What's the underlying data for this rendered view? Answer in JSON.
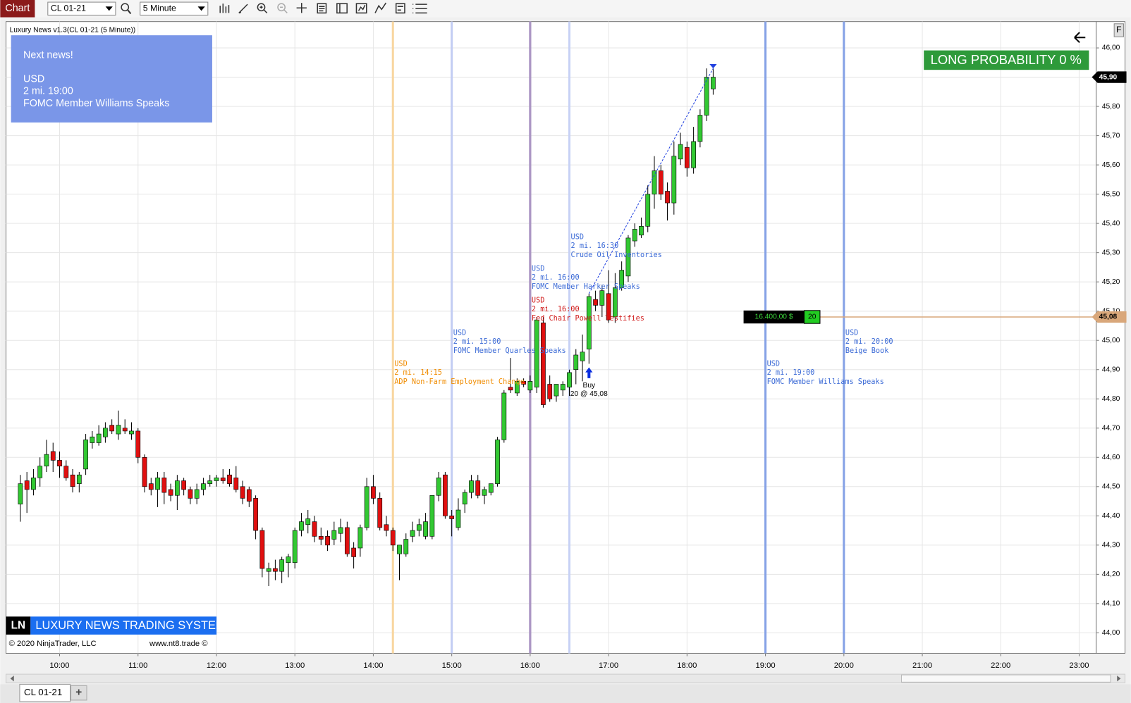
{
  "toolbar": {
    "button": "Chart",
    "instrument": "CL 01-21",
    "interval": "5 Minute"
  },
  "chart_data": {
    "type": "candlestick",
    "title": "Luxury News v1.3(CL 01-21 (5 Minute))",
    "x": [
      "9:30",
      "9:35",
      "9:40",
      "9:45",
      "9:50",
      "9:55",
      "10:00",
      "10:05",
      "10:10",
      "10:15",
      "10:20",
      "10:25",
      "10:30",
      "10:35",
      "10:40",
      "10:45",
      "10:50",
      "10:55",
      "11:00",
      "11:05",
      "11:10",
      "11:15",
      "11:20",
      "11:25",
      "11:30",
      "11:35",
      "11:40",
      "11:45",
      "11:50",
      "11:55",
      "12:00",
      "12:05",
      "12:10",
      "12:15",
      "12:20",
      "12:25",
      "12:30",
      "12:35",
      "12:40",
      "12:45",
      "12:50",
      "12:55",
      "13:00",
      "13:05",
      "13:10",
      "13:15",
      "13:20",
      "13:25",
      "13:30",
      "13:35",
      "13:40",
      "13:45",
      "13:50",
      "13:55",
      "14:00",
      "14:05",
      "14:10",
      "14:15",
      "14:20",
      "14:25",
      "14:30",
      "14:35",
      "14:40",
      "14:45",
      "14:50",
      "14:55",
      "15:00",
      "15:05",
      "15:10",
      "15:15",
      "15:20",
      "15:25",
      "15:30",
      "15:35",
      "15:40",
      "15:45",
      "15:50",
      "15:55",
      "16:00",
      "16:05",
      "16:10",
      "16:15",
      "16:20",
      "16:25",
      "16:30",
      "16:35",
      "16:40",
      "16:45",
      "16:50",
      "16:55",
      "17:00",
      "17:05",
      "17:10",
      "17:15",
      "17:20",
      "17:25",
      "17:30",
      "17:35",
      "17:40",
      "17:45",
      "17:50",
      "17:55",
      "18:00",
      "18:05",
      "18:10",
      "18:15",
      "18:20"
    ],
    "open": [
      44.44,
      44.52,
      44.49,
      44.53,
      44.57,
      44.62,
      44.59,
      44.57,
      44.54,
      44.51,
      44.56,
      44.65,
      44.65,
      44.67,
      44.71,
      44.68,
      44.7,
      44.68,
      44.69,
      44.6,
      44.51,
      44.49,
      44.53,
      44.49,
      44.47,
      44.52,
      44.49,
      44.46,
      44.49,
      44.51,
      44.52,
      44.53,
      44.54,
      44.53,
      44.5,
      44.49,
      44.46,
      44.35,
      44.21,
      44.22,
      44.21,
      44.24,
      44.24,
      44.35,
      44.37,
      44.38,
      44.33,
      44.33,
      44.32,
      44.34,
      44.36,
      44.29,
      44.29,
      44.36,
      44.5,
      44.46,
      44.37,
      44.35,
      44.27,
      44.27,
      44.33,
      44.35,
      44.33,
      44.33,
      44.47,
      44.54,
      44.4,
      44.36,
      44.44,
      44.48,
      44.52,
      44.47,
      44.48,
      44.51,
      44.66,
      44.84,
      44.82,
      44.86,
      44.83,
      44.84,
      45.06,
      44.85,
      44.81,
      44.83,
      44.84,
      44.9,
      44.93,
      44.97,
      45.14,
      45.12,
      45.16,
      45.08,
      45.18,
      45.22,
      45.34,
      45.36,
      45.39,
      45.5,
      45.58,
      45.51,
      45.47,
      45.62,
      45.66,
      45.59,
      45.68,
      45.77,
      45.86
    ],
    "high": [
      44.54,
      44.55,
      44.56,
      44.6,
      44.66,
      44.65,
      44.62,
      44.59,
      44.56,
      44.55,
      44.68,
      44.69,
      44.71,
      44.72,
      44.73,
      44.76,
      44.73,
      44.72,
      44.7,
      44.61,
      44.53,
      44.55,
      44.55,
      44.51,
      44.54,
      44.53,
      44.5,
      44.51,
      44.53,
      44.54,
      44.54,
      44.56,
      44.56,
      44.57,
      44.52,
      44.5,
      44.47,
      44.36,
      44.24,
      44.25,
      44.26,
      44.27,
      44.36,
      44.41,
      44.42,
      44.4,
      44.36,
      44.35,
      44.38,
      44.39,
      44.38,
      44.31,
      44.37,
      44.53,
      44.54,
      44.48,
      44.4,
      44.36,
      44.3,
      44.34,
      44.38,
      44.39,
      44.41,
      44.47,
      44.55,
      44.55,
      44.42,
      44.46,
      44.49,
      44.54,
      44.54,
      44.5,
      44.51,
      44.67,
      44.83,
      44.94,
      44.87,
      44.87,
      44.88,
      45.08,
      45.08,
      44.88,
      44.85,
      44.86,
      44.9,
      44.97,
      45.02,
      45.16,
      45.17,
      45.19,
      45.24,
      45.23,
      45.27,
      45.36,
      45.4,
      45.42,
      45.53,
      45.63,
      45.6,
      45.54,
      45.68,
      45.71,
      45.68,
      45.73,
      45.79,
      45.93,
      45.93
    ],
    "low": [
      44.38,
      44.41,
      44.47,
      44.5,
      44.55,
      44.55,
      44.53,
      44.52,
      44.48,
      44.48,
      44.54,
      44.63,
      44.64,
      44.65,
      44.68,
      44.66,
      44.68,
      44.66,
      44.58,
      44.48,
      44.47,
      44.43,
      44.44,
      44.45,
      44.42,
      44.47,
      44.44,
      44.44,
      44.47,
      44.5,
      44.5,
      44.51,
      44.5,
      44.48,
      44.44,
      44.43,
      44.32,
      44.19,
      44.16,
      44.18,
      44.17,
      44.19,
      44.22,
      44.33,
      44.34,
      44.31,
      44.3,
      44.28,
      44.3,
      44.31,
      44.26,
      44.22,
      44.26,
      44.35,
      44.44,
      44.35,
      44.33,
      44.28,
      44.18,
      44.26,
      44.31,
      44.33,
      44.32,
      44.32,
      44.45,
      44.39,
      44.33,
      44.35,
      44.41,
      44.46,
      44.46,
      44.44,
      44.47,
      44.5,
      44.65,
      44.82,
      44.81,
      44.84,
      44.82,
      44.82,
      44.77,
      44.79,
      44.79,
      44.81,
      44.81,
      44.85,
      44.86,
      44.92,
      45.1,
      45.08,
      45.06,
      45.06,
      45.17,
      45.2,
      45.32,
      45.35,
      45.37,
      45.45,
      45.48,
      45.41,
      45.43,
      45.6,
      45.56,
      45.57,
      45.66,
      45.75,
      45.84
    ],
    "close": [
      44.51,
      44.49,
      44.53,
      44.57,
      44.61,
      44.59,
      44.57,
      44.53,
      44.5,
      44.54,
      44.66,
      44.67,
      44.68,
      44.7,
      44.69,
      44.71,
      44.69,
      44.69,
      44.6,
      44.5,
      44.49,
      44.53,
      44.48,
      44.47,
      44.52,
      44.49,
      44.46,
      44.49,
      44.51,
      44.52,
      44.53,
      44.52,
      44.51,
      44.49,
      44.46,
      44.45,
      44.35,
      44.22,
      44.22,
      44.21,
      44.25,
      44.26,
      44.35,
      44.38,
      44.39,
      44.33,
      44.32,
      44.3,
      44.35,
      44.36,
      44.27,
      44.26,
      44.36,
      44.5,
      44.46,
      44.36,
      44.35,
      44.3,
      44.3,
      44.32,
      44.35,
      44.37,
      44.38,
      44.47,
      44.53,
      44.4,
      44.39,
      44.42,
      44.48,
      44.52,
      44.47,
      44.49,
      44.51,
      44.66,
      44.82,
      44.83,
      44.86,
      44.85,
      44.86,
      45.07,
      44.78,
      44.8,
      44.85,
      44.85,
      44.89,
      44.95,
      44.96,
      45.15,
      45.12,
      45.17,
      45.07,
      45.18,
      45.24,
      45.35,
      45.38,
      45.39,
      45.5,
      45.58,
      45.5,
      45.47,
      45.63,
      45.67,
      45.59,
      45.68,
      45.77,
      45.9,
      45.9
    ],
    "up_color": "#32c832",
    "down_color": "#e01010",
    "wick_color": "#000000",
    "xlim": [
      "9:19",
      "23:13"
    ],
    "xticks": [
      "10:00",
      "11:00",
      "12:00",
      "13:00",
      "14:00",
      "15:00",
      "16:00",
      "17:00",
      "18:00",
      "19:00",
      "20:00",
      "21:00",
      "22:00",
      "23:00"
    ],
    "ylim": [
      43.93,
      46.09
    ],
    "yticks": [
      {
        "value": 44.0,
        "label": "44,00"
      },
      {
        "value": 44.1,
        "label": "44,10"
      },
      {
        "value": 44.2,
        "label": "44,20"
      },
      {
        "value": 44.3,
        "label": "44,30"
      },
      {
        "value": 44.4,
        "label": "44,40"
      },
      {
        "value": 44.5,
        "label": "44,50"
      },
      {
        "value": 44.6,
        "label": "44,60"
      },
      {
        "value": 44.7,
        "label": "44,70"
      },
      {
        "value": 44.8,
        "label": "44,80"
      },
      {
        "value": 44.9,
        "label": "44,90"
      },
      {
        "value": 45.0,
        "label": "45,00"
      },
      {
        "value": 45.1,
        "label": "45,10"
      },
      {
        "value": 45.2,
        "label": "45,20"
      },
      {
        "value": 45.3,
        "label": "45,30"
      },
      {
        "value": 45.4,
        "label": "45,40"
      },
      {
        "value": 45.5,
        "label": "45,50"
      },
      {
        "value": 45.6,
        "label": "45,60"
      },
      {
        "value": 45.7,
        "label": "45,70"
      },
      {
        "value": 45.8,
        "label": "45,80"
      },
      {
        "value": 45.9,
        "label": "45,90"
      },
      {
        "value": 46.0,
        "label": "46,00"
      }
    ],
    "grid": true,
    "last_price": {
      "value": 45.9,
      "label": "45,90"
    },
    "news": [
      {
        "time": "14:15",
        "currency": "USD",
        "when": "2 mi. 14:15",
        "event": "ADP Non-Farm Employment Change",
        "text_color": "#f08c00",
        "line_color": "#f8d6a0"
      },
      {
        "time": "15:00",
        "currency": "USD",
        "when": "2 mi. 15:00",
        "event": "FOMC Member Quarles Speaks",
        "text_color": "#3b6ad6",
        "line_color": "#c3cdf3"
      },
      {
        "time": "16:00",
        "currency": "USD",
        "when": "2 mi. 16:00",
        "event": "FOMC Member Harker Speaks",
        "text_color": "#3b6ad6",
        "line_color": "#ab96c4"
      },
      {
        "time": "16:00",
        "currency": "USD",
        "when": "2 mi. 16:00",
        "event": "Fed Chair Powell Testifies",
        "text_color": "#d01a1a",
        "line_color": "#ab96c4"
      },
      {
        "time": "16:30",
        "currency": "USD",
        "when": "2 mi. 16:30",
        "event": "Crude Oil Inventories",
        "text_color": "#3b6ad6",
        "line_color": "#c8d2f5"
      },
      {
        "time": "19:00",
        "currency": "USD",
        "when": "2 mi. 19:00",
        "event": "FOMC Member Williams Speaks",
        "text_color": "#3b6ad6",
        "line_color": "#86a2e6"
      },
      {
        "time": "20:00",
        "currency": "USD",
        "when": "2 mi. 20:00",
        "event": "Beige Book",
        "text_color": "#3b6ad6",
        "line_color": "#86a2e6"
      }
    ],
    "trend_line": {
      "x": [
        "16:45",
        "18:20"
      ],
      "y": [
        45.16,
        45.93
      ]
    },
    "execution": {
      "x": "16:45",
      "label": "Buy",
      "detail": "20 @ 45,08"
    },
    "position": {
      "price": {
        "value": 45.08,
        "label": "45,08"
      },
      "pnl": "16.400,00 $",
      "quantity": 20
    }
  },
  "news_panel": {
    "heading": "Next news!",
    "currency": "USD",
    "when": "2 mi. 19:00",
    "event": "FOMC Member Williams Speaks"
  },
  "probability": "LONG PROBABILITY 0 %",
  "brand": {
    "logo": "LN",
    "name": "LUXURY NEWS TRADING SYSTEM"
  },
  "footer": {
    "copyright": "© 2020 NinjaTrader, LLC",
    "site": "www.nt8.trade ©"
  },
  "tabs": [
    "CL 01-21"
  ],
  "add_tab": "+",
  "panel_button": "F"
}
